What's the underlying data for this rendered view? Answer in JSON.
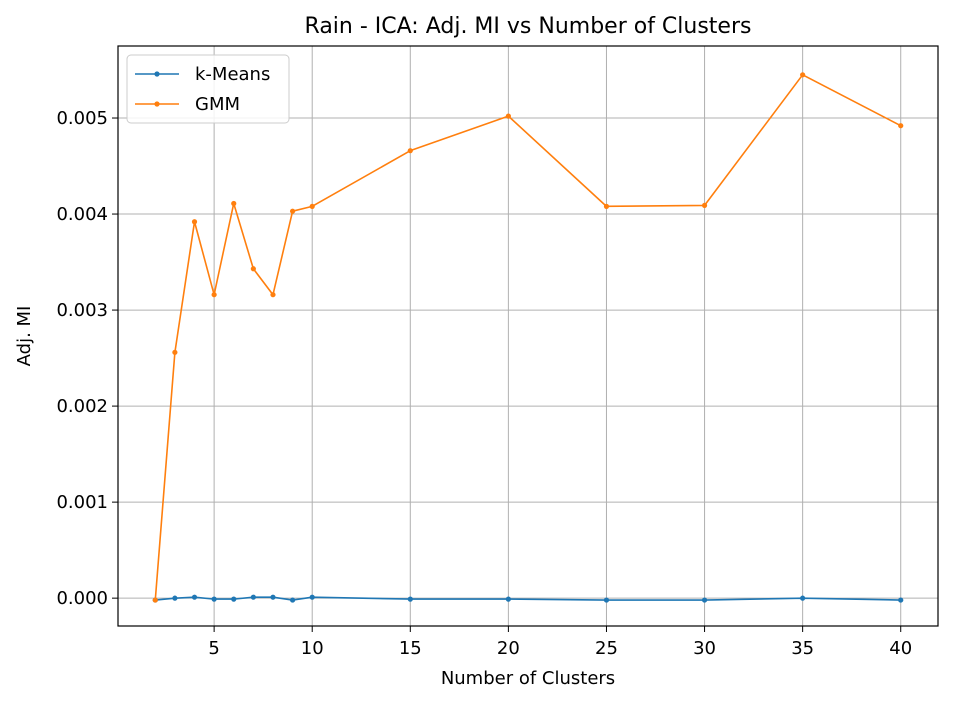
{
  "chart_data": {
    "type": "line",
    "title": "Rain - ICA: Adj. MI vs Number of Clusters",
    "xlabel": "Number of Clusters",
    "ylabel": "Adj. MI",
    "xlim": [
      0.1,
      41.9
    ],
    "ylim": [
      -0.00029,
      0.00575
    ],
    "xticks": [
      5,
      10,
      15,
      20,
      25,
      30,
      35,
      40
    ],
    "xtick_labels": [
      "5",
      "10",
      "15",
      "20",
      "25",
      "30",
      "35",
      "40"
    ],
    "yticks": [
      0.0,
      0.001,
      0.002,
      0.003,
      0.004,
      0.005
    ],
    "ytick_labels": [
      "0.000",
      "0.001",
      "0.002",
      "0.003",
      "0.004",
      "0.005"
    ],
    "grid": true,
    "legend_position": "top-left",
    "series": [
      {
        "name": "k-Means",
        "color": "#1f77b4",
        "x": [
          2,
          3,
          4,
          5,
          6,
          7,
          8,
          9,
          10,
          15,
          20,
          25,
          30,
          35,
          40
        ],
        "y": [
          -2e-05,
          0.0,
          1e-05,
          -1e-05,
          -1e-05,
          1e-05,
          1e-05,
          -2e-05,
          1e-05,
          -1e-05,
          -1e-05,
          -2e-05,
          -2e-05,
          0.0,
          -2e-05
        ]
      },
      {
        "name": "GMM",
        "color": "#ff7f0e",
        "x": [
          2,
          3,
          4,
          5,
          6,
          7,
          8,
          9,
          10,
          15,
          20,
          25,
          30,
          35,
          40
        ],
        "y": [
          -2e-05,
          0.00256,
          0.00392,
          0.00316,
          0.00411,
          0.00343,
          0.00316,
          0.00403,
          0.00408,
          0.00466,
          0.00502,
          0.00408,
          0.00409,
          0.00545,
          0.00492
        ]
      }
    ]
  }
}
